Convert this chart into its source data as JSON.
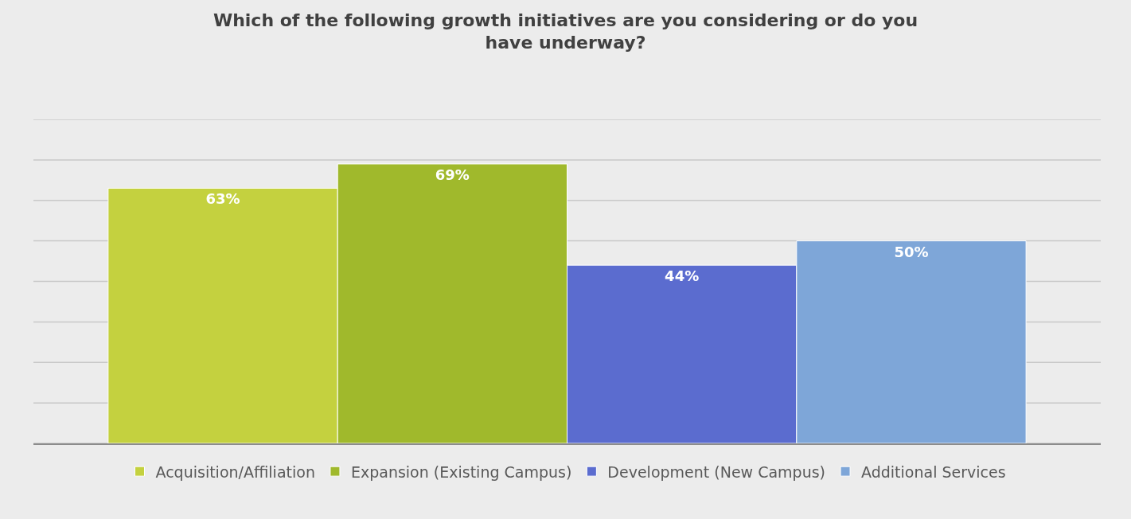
{
  "chart_data": {
    "type": "bar",
    "title": "Which of the following growth initiatives are you considering or do you have underway?",
    "categories": [
      null
    ],
    "series": [
      {
        "name": "Acquisition/Affiliation",
        "color": "#c4d13f",
        "values": [
          63
        ],
        "value_labels": [
          "63%"
        ]
      },
      {
        "name": "Expansion (Existing Campus)",
        "color": "#a0b92c",
        "values": [
          69
        ],
        "value_labels": [
          "69%"
        ]
      },
      {
        "name": "Development (New Campus)",
        "color": "#5b6ccf",
        "values": [
          44
        ],
        "value_labels": [
          "44%"
        ]
      },
      {
        "name": "Additional Services",
        "color": "#7ea6d8",
        "values": [
          50
        ],
        "value_labels": [
          "50%"
        ]
      }
    ],
    "ylim": [
      0,
      80
    ],
    "yticks": [
      {
        "value": 0,
        "label": null
      },
      {
        "value": 10,
        "label": null
      },
      {
        "value": 20,
        "label": null
      },
      {
        "value": 30,
        "label": null
      },
      {
        "value": 40,
        "label": null
      },
      {
        "value": 50,
        "label": null
      },
      {
        "value": 60,
        "label": null
      },
      {
        "value": 70,
        "label": null
      },
      {
        "value": 80,
        "label": null
      }
    ],
    "grid": "y",
    "legend": "bottom"
  }
}
